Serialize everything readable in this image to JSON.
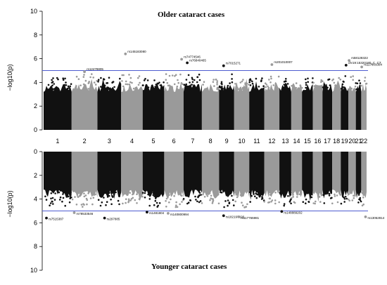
{
  "chart_data": {
    "type": "scatter",
    "subtype": "miami-plot",
    "y_label": "−log10(p)",
    "chromosomes": [
      "1",
      "2",
      "3",
      "4",
      "5",
      "6",
      "7",
      "8",
      "9",
      "10",
      "11",
      "12",
      "13",
      "14",
      "15",
      "16",
      "17",
      "18",
      "19",
      "20",
      "21",
      "22"
    ],
    "top": {
      "title": "Older cataract cases",
      "ylim": [
        0,
        10
      ],
      "yticks": [
        0,
        2,
        4,
        6,
        8,
        10
      ],
      "threshold": 5,
      "snps": [
        {
          "label": "rs12478805",
          "chr": "2",
          "pos": 0.5,
          "value": 4.9
        },
        {
          "label": "rs145183080",
          "chr": "4",
          "pos": 0.2,
          "value": 6.4
        },
        {
          "label": "rs74774546",
          "chr": "6",
          "pos": 0.9,
          "value": 5.95
        },
        {
          "label": "rs76840465",
          "chr": "7",
          "pos": 0.2,
          "value": 5.65
        },
        {
          "label": "rs7015271",
          "chr": "9",
          "pos": 0.3,
          "value": 5.4
        },
        {
          "label": "rs201010007",
          "chr": "12",
          "pos": 0.5,
          "value": 5.5
        },
        {
          "label": "rs58128322",
          "chr": "20",
          "pos": 0.1,
          "value": 5.85
        },
        {
          "label": "chr19:15320180_C_CT",
          "chr": "19",
          "pos": 0.7,
          "value": 5.45
        },
        {
          "label": "rs117901384",
          "chr": "22",
          "pos": 0.1,
          "value": 5.3
        }
      ]
    },
    "bottom": {
      "title": "Younger cataract cases",
      "ylim": [
        0,
        10
      ],
      "yticks": [
        0,
        2,
        4,
        6,
        8,
        10
      ],
      "threshold": 5,
      "snps": [
        {
          "label": "rs7515387",
          "chr": "1",
          "pos": 0.1,
          "value": 5.6
        },
        {
          "label": "rs78533546",
          "chr": "2",
          "pos": 0.1,
          "value": 5.15
        },
        {
          "label": "rs297885",
          "chr": "3",
          "pos": 0.3,
          "value": 5.6
        },
        {
          "label": "rs1481804",
          "chr": "5",
          "pos": 0.2,
          "value": 5.1
        },
        {
          "label": "rs140800994",
          "chr": "6",
          "pos": 0.2,
          "value": 5.2
        },
        {
          "label": "rs182197826",
          "chr": "9",
          "pos": 0.3,
          "value": 5.4
        },
        {
          "label": "rs117765981",
          "chr": "10",
          "pos": 0.3,
          "value": 5.5
        },
        {
          "label": "rs148889202",
          "chr": "13",
          "pos": 0.2,
          "value": 5.05
        },
        {
          "label": "rs13052814",
          "chr": "22",
          "pos": 0.8,
          "value": 5.5
        }
      ]
    },
    "colors": {
      "odd": "#111111",
      "even": "#9a9a9a",
      "threshold": "#4d5bd0"
    }
  }
}
